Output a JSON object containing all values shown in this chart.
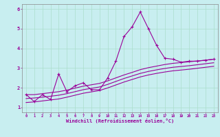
{
  "xlabel": "Windchill (Refroidissement éolien,°C)",
  "background_color": "#c8eef0",
  "grid_color": "#aaddcc",
  "line_color": "#990099",
  "xlim": [
    -0.5,
    23.5
  ],
  "ylim": [
    0.75,
    6.25
  ],
  "yticks": [
    1,
    2,
    3,
    4,
    5,
    6
  ],
  "xticks": [
    0,
    1,
    2,
    3,
    4,
    5,
    6,
    7,
    8,
    9,
    10,
    11,
    12,
    13,
    14,
    15,
    16,
    17,
    18,
    19,
    20,
    21,
    22,
    23
  ],
  "line1_x": [
    0,
    1,
    2,
    3,
    4,
    5,
    6,
    7,
    8,
    9,
    10,
    11,
    12,
    13,
    14,
    15,
    16,
    17,
    18,
    19,
    20,
    21,
    22,
    23
  ],
  "line1_y": [
    1.65,
    1.3,
    1.65,
    1.4,
    2.7,
    1.8,
    2.1,
    2.25,
    1.9,
    1.9,
    2.5,
    3.35,
    4.6,
    5.1,
    5.85,
    5.0,
    4.15,
    3.5,
    3.45,
    3.3,
    3.35,
    3.35,
    3.4,
    3.45
  ],
  "line2_x": [
    0,
    1,
    2,
    3,
    4,
    5,
    6,
    7,
    8,
    9,
    10,
    11,
    12,
    13,
    14,
    15,
    16,
    17,
    18,
    19,
    20,
    21,
    22,
    23
  ],
  "line2_y": [
    1.65,
    1.65,
    1.7,
    1.75,
    1.8,
    1.88,
    1.98,
    2.08,
    2.15,
    2.22,
    2.35,
    2.5,
    2.65,
    2.78,
    2.92,
    3.02,
    3.1,
    3.18,
    3.24,
    3.28,
    3.32,
    3.36,
    3.4,
    3.45
  ],
  "line3_x": [
    0,
    1,
    2,
    3,
    4,
    5,
    6,
    7,
    8,
    9,
    10,
    11,
    12,
    13,
    14,
    15,
    16,
    17,
    18,
    19,
    20,
    21,
    22,
    23
  ],
  "line3_y": [
    1.45,
    1.48,
    1.52,
    1.57,
    1.62,
    1.7,
    1.8,
    1.9,
    1.97,
    2.04,
    2.17,
    2.32,
    2.47,
    2.6,
    2.73,
    2.83,
    2.91,
    2.98,
    3.04,
    3.08,
    3.12,
    3.17,
    3.22,
    3.27
  ],
  "line4_x": [
    0,
    1,
    2,
    3,
    4,
    5,
    6,
    7,
    8,
    9,
    10,
    11,
    12,
    13,
    14,
    15,
    16,
    17,
    18,
    19,
    20,
    21,
    22,
    23
  ],
  "line4_y": [
    1.25,
    1.28,
    1.33,
    1.38,
    1.43,
    1.52,
    1.62,
    1.72,
    1.79,
    1.86,
    1.99,
    2.14,
    2.29,
    2.42,
    2.55,
    2.65,
    2.73,
    2.8,
    2.86,
    2.9,
    2.94,
    2.99,
    3.04,
    3.09
  ]
}
